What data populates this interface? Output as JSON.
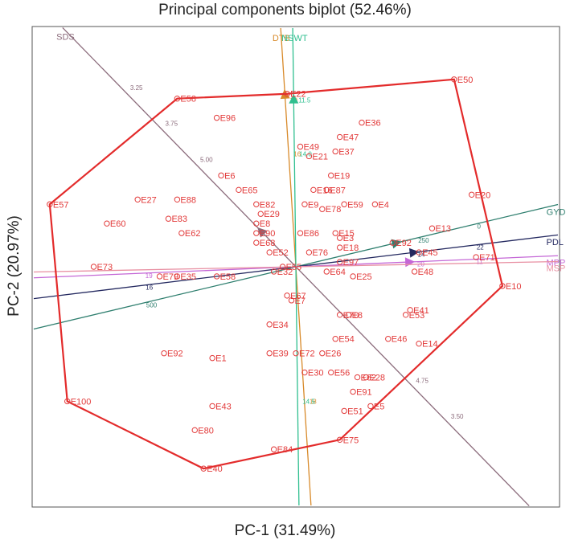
{
  "chart_data": {
    "type": "scatter",
    "title": "Principal components biplot (52.46%)",
    "xlabel": "PC-1  (31.49%)",
    "ylabel": "PC-2  (20.97%)",
    "xlim": [
      -6,
      6
    ],
    "ylim": [
      -5,
      5
    ],
    "grid": false,
    "hull_color": "#e32b2b",
    "point_color": "#e23a3a",
    "genotypes": [
      {
        "name": "E50",
        "x": 3.6,
        "y": 3.9
      },
      {
        "name": "E58",
        "x": -2.7,
        "y": 3.5
      },
      {
        "name": "E22",
        "x": -0.2,
        "y": 3.6
      },
      {
        "name": "E96",
        "x": -1.8,
        "y": 3.1
      },
      {
        "name": "E36",
        "x": 1.5,
        "y": 3.0
      },
      {
        "name": "E47",
        "x": 1.0,
        "y": 2.7
      },
      {
        "name": "E49",
        "x": 0.1,
        "y": 2.5
      },
      {
        "name": "E37",
        "x": 0.9,
        "y": 2.4
      },
      {
        "name": "E21",
        "x": 0.3,
        "y": 2.3
      },
      {
        "name": "E19",
        "x": 0.8,
        "y": 1.9
      },
      {
        "name": "E6",
        "x": -1.7,
        "y": 1.9
      },
      {
        "name": "E65",
        "x": -1.3,
        "y": 1.6
      },
      {
        "name": "E16",
        "x": 0.4,
        "y": 1.6
      },
      {
        "name": "E87",
        "x": 0.7,
        "y": 1.6
      },
      {
        "name": "E20",
        "x": 4.0,
        "y": 1.5
      },
      {
        "name": "E57",
        "x": -5.6,
        "y": 1.3
      },
      {
        "name": "E27",
        "x": -3.6,
        "y": 1.4
      },
      {
        "name": "E88",
        "x": -2.7,
        "y": 1.4
      },
      {
        "name": "E9",
        "x": 0.2,
        "y": 1.3
      },
      {
        "name": "E59",
        "x": 1.1,
        "y": 1.3
      },
      {
        "name": "E4",
        "x": 1.8,
        "y": 1.3
      },
      {
        "name": "E82",
        "x": -0.9,
        "y": 1.3
      },
      {
        "name": "E78",
        "x": 0.6,
        "y": 1.2
      },
      {
        "name": "E29",
        "x": -0.8,
        "y": 1.1
      },
      {
        "name": "E83",
        "x": -2.9,
        "y": 1.0
      },
      {
        "name": "E60",
        "x": -4.3,
        "y": 0.9
      },
      {
        "name": "E8",
        "x": -0.9,
        "y": 0.9
      },
      {
        "name": "E13",
        "x": 3.1,
        "y": 0.8
      },
      {
        "name": "E62",
        "x": -2.6,
        "y": 0.7
      },
      {
        "name": "E90",
        "x": -0.9,
        "y": 0.7
      },
      {
        "name": "E86",
        "x": 0.1,
        "y": 0.7
      },
      {
        "name": "E15",
        "x": 0.9,
        "y": 0.7
      },
      {
        "name": "E3",
        "x": 1.0,
        "y": 0.6
      },
      {
        "name": "E92",
        "x": 2.2,
        "y": 0.5
      },
      {
        "name": "E68",
        "x": -0.9,
        "y": 0.5
      },
      {
        "name": "E18",
        "x": 1.0,
        "y": 0.4
      },
      {
        "name": "E45",
        "x": 2.8,
        "y": 0.3
      },
      {
        "name": "E71",
        "x": 4.1,
        "y": 0.2
      },
      {
        "name": "E52",
        "x": -0.6,
        "y": 0.3
      },
      {
        "name": "E76",
        "x": 0.3,
        "y": 0.3
      },
      {
        "name": "E73",
        "x": -4.6,
        "y": 0.0
      },
      {
        "name": "E97",
        "x": 1.0,
        "y": 0.1
      },
      {
        "name": "E48",
        "x": 2.7,
        "y": -0.1
      },
      {
        "name": "E10",
        "x": 4.7,
        "y": -0.4
      },
      {
        "name": "E79",
        "x": -3.1,
        "y": -0.2
      },
      {
        "name": "E35",
        "x": -2.7,
        "y": -0.2
      },
      {
        "name": "E58b",
        "x": -1.8,
        "y": -0.2
      },
      {
        "name": "E32",
        "x": -0.5,
        "y": -0.1
      },
      {
        "name": "E55",
        "x": -0.3,
        "y": 0.0
      },
      {
        "name": "E64",
        "x": 0.7,
        "y": -0.1
      },
      {
        "name": "E25",
        "x": 1.3,
        "y": -0.2
      },
      {
        "name": "E67",
        "x": -0.2,
        "y": -0.6
      },
      {
        "name": "E7",
        "x": -0.1,
        "y": -0.7
      },
      {
        "name": "E41",
        "x": 2.6,
        "y": -0.9
      },
      {
        "name": "E53",
        "x": 2.5,
        "y": -1.0
      },
      {
        "name": "E70",
        "x": 1.0,
        "y": -1.0
      },
      {
        "name": "E8b",
        "x": 1.2,
        "y": -1.0
      },
      {
        "name": "E34",
        "x": -0.6,
        "y": -1.2
      },
      {
        "name": "E54",
        "x": 0.9,
        "y": -1.5
      },
      {
        "name": "E46",
        "x": 2.1,
        "y": -1.5
      },
      {
        "name": "E14",
        "x": 2.8,
        "y": -1.6
      },
      {
        "name": "E92b",
        "x": -3.0,
        "y": -1.8
      },
      {
        "name": "E1",
        "x": -1.9,
        "y": -1.9
      },
      {
        "name": "E39",
        "x": -0.6,
        "y": -1.8
      },
      {
        "name": "E72",
        "x": 0.0,
        "y": -1.8
      },
      {
        "name": "E26",
        "x": 0.6,
        "y": -1.8
      },
      {
        "name": "E30",
        "x": 0.2,
        "y": -2.2
      },
      {
        "name": "E56",
        "x": 0.8,
        "y": -2.2
      },
      {
        "name": "E62b",
        "x": 1.4,
        "y": -2.3
      },
      {
        "name": "E28",
        "x": 1.6,
        "y": -2.3
      },
      {
        "name": "E91",
        "x": 1.3,
        "y": -2.6
      },
      {
        "name": "E100",
        "x": -5.2,
        "y": -2.8
      },
      {
        "name": "E43",
        "x": -1.9,
        "y": -2.9
      },
      {
        "name": "E51",
        "x": 1.1,
        "y": -3.0
      },
      {
        "name": "E5",
        "x": 1.7,
        "y": -2.9
      },
      {
        "name": "E80",
        "x": -2.3,
        "y": -3.4
      },
      {
        "name": "E75",
        "x": 1.0,
        "y": -3.6
      },
      {
        "name": "E84",
        "x": -0.5,
        "y": -3.8
      },
      {
        "name": "E40",
        "x": -2.1,
        "y": -4.2
      }
    ],
    "hull": [
      "E50",
      "E10",
      "E75",
      "E40",
      "E100",
      "E57",
      "E58",
      "E22"
    ],
    "vectors": [
      {
        "name": "DTB",
        "color": "#d88a2a",
        "x": -0.25,
        "y": 3.6,
        "ticks": [
          "16",
          "18",
          "20"
        ]
      },
      {
        "name": "NSWT",
        "color": "#2fbf8f",
        "x": -0.05,
        "y": 3.5,
        "ticks": [
          "14.0",
          "14.5",
          "11.5"
        ]
      },
      {
        "name": "SDS",
        "color": "#8b6b7b",
        "x": -0.8,
        "y": 0.75,
        "ticks": [
          "5.00",
          "4.75",
          "3.75",
          "3.50",
          "3.25"
        ]
      },
      {
        "name": "GYD",
        "color": "#2f7f6f",
        "x": 2.3,
        "y": 0.5,
        "ticks": [
          "250",
          "500",
          "0"
        ]
      },
      {
        "name": "PDL",
        "color": "#23285f",
        "x": 2.7,
        "y": 0.3,
        "ticks": [
          "14",
          "16",
          "22"
        ]
      },
      {
        "name": "MPP",
        "color": "#c467d6",
        "x": 2.6,
        "y": 0.1,
        "ticks": [
          "20",
          "19",
          "11"
        ]
      },
      {
        "name": "MSP",
        "color": "#e88fa2",
        "x": 0.0,
        "y": 0.0,
        "ticks": []
      }
    ]
  }
}
